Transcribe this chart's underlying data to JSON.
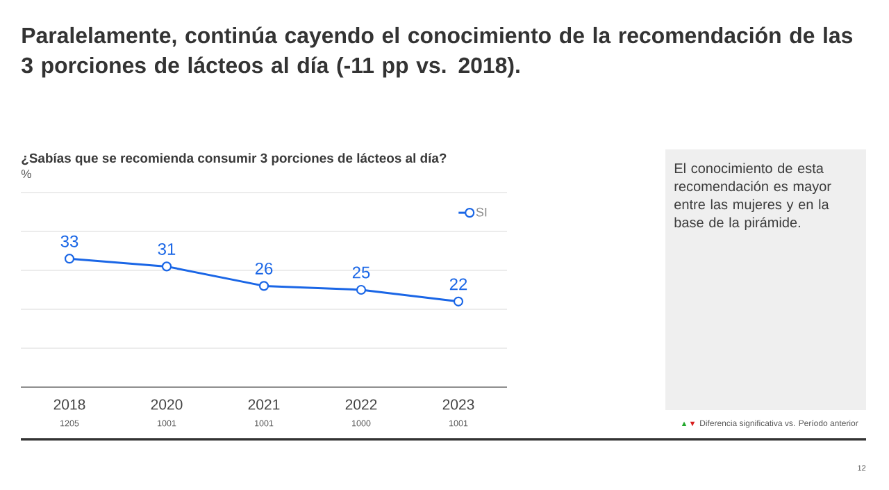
{
  "chart_data": {
    "type": "line",
    "title": "Paralelamente, continúa cayendo el conocimiento de la recomendación de las 3 porciones de lácteos al día (-11 pp vs. 2018).",
    "subtitle": "¿Sabías que se recomienda consumir 3 porciones de lácteos al día?",
    "ylabel": "%",
    "categories": [
      "2018",
      "2020",
      "2021",
      "2022",
      "2023"
    ],
    "series": [
      {
        "name": "SI",
        "color": "#1a66e6",
        "values": [
          33,
          31,
          26,
          25,
          22
        ]
      }
    ],
    "ylim": [
      0,
      50
    ],
    "yticks": [
      {
        "value": 0,
        "label": null
      },
      {
        "value": 10,
        "label": null
      },
      {
        "value": 20,
        "label": null
      },
      {
        "value": 30,
        "label": null
      },
      {
        "value": 40,
        "label": null
      },
      {
        "value": 50,
        "label": null
      }
    ],
    "tick_labels": "x",
    "grid": "y",
    "legend": "top right",
    "marker": "circle",
    "line_style": "solid",
    "data_labels": true,
    "annotations": [
      "El conocimiento de esta recomendación es mayor entre las mujeres y en la base de la pirámide.",
      "1205",
      "1001",
      "1001",
      "1000",
      "1001",
      "▲",
      "▼",
      "Diferencia significativa vs. Período anterior",
      "12"
    ]
  }
}
